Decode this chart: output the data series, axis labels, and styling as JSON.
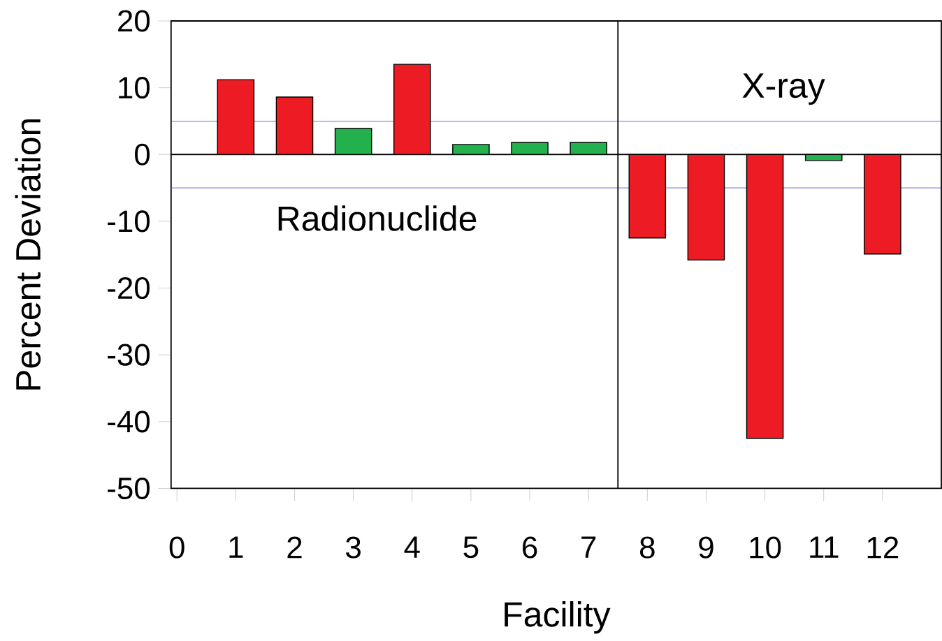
{
  "chart_data": {
    "type": "bar",
    "xlabel": "Facility",
    "ylabel": "Percent Deviation",
    "x": [
      1,
      2,
      3,
      4,
      5,
      6,
      7,
      8,
      9,
      10,
      11,
      12
    ],
    "values": [
      11.2,
      8.6,
      3.9,
      13.5,
      1.5,
      1.8,
      1.8,
      -12.5,
      -15.8,
      -42.5,
      -0.9,
      -14.9
    ],
    "colors": [
      "#ed1c24",
      "#ed1c24",
      "#22b14c",
      "#ed1c24",
      "#22b14c",
      "#22b14c",
      "#22b14c",
      "#ed1c24",
      "#ed1c24",
      "#ed1c24",
      "#22b14c",
      "#ed1c24"
    ],
    "xlim": [
      -0.1,
      13
    ],
    "xticks": [
      0,
      1,
      2,
      3,
      4,
      5,
      6,
      7,
      8,
      9,
      10,
      11,
      12
    ],
    "ylim": [
      -50,
      20
    ],
    "yticks": [
      -50,
      -40,
      -30,
      -20,
      -10,
      0,
      10,
      20
    ],
    "ref_lines": [
      {
        "axis": "y",
        "value": 5,
        "color": "#4a4ad0"
      },
      {
        "axis": "y",
        "value": -5,
        "color": "#4a4ad0"
      },
      {
        "axis": "y",
        "value": 0,
        "color": "#000000"
      },
      {
        "axis": "x",
        "value": 7.5,
        "color": "#000000"
      }
    ],
    "annotations": [
      "Radionuclide",
      "X-ray"
    ]
  }
}
